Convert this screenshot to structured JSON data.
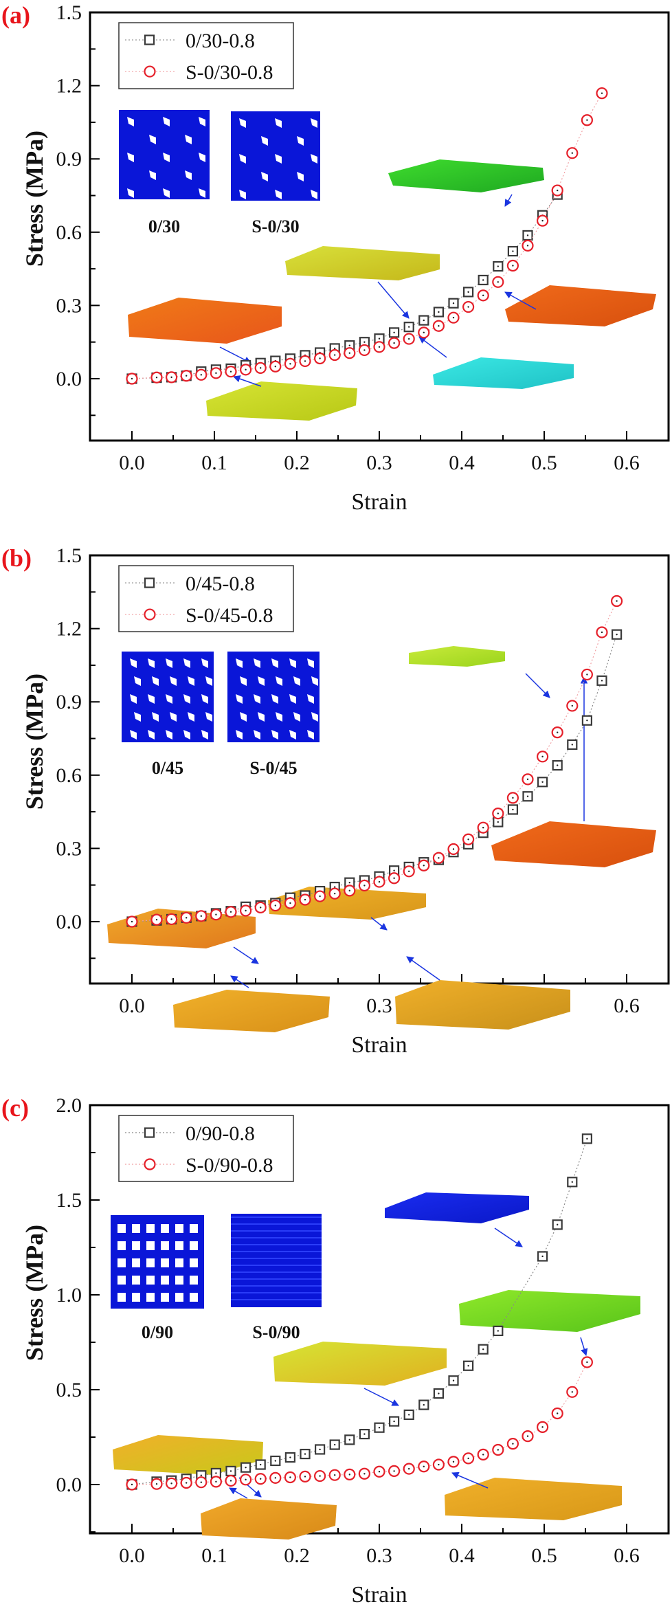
{
  "figure": {
    "panels": [
      {
        "id": "a",
        "label": "(a)",
        "inset_captions": [
          "0/30",
          "S-0/30"
        ]
      },
      {
        "id": "b",
        "label": "(b)",
        "inset_captions": [
          "0/45",
          "S-0/45"
        ]
      },
      {
        "id": "c",
        "label": "(c)",
        "inset_captions": [
          "0/90",
          "S-0/90"
        ]
      }
    ],
    "colors": {
      "series_square": "#3a3a3a",
      "series_circle": "#e5202a",
      "panel_label": "#e8141b",
      "arrow": "#1a35e0",
      "inset_blue": "#0a16d8"
    }
  },
  "chart_data": [
    {
      "type": "scatter",
      "panel": "(a)",
      "title": "",
      "xlabel": "Strain",
      "ylabel": "Stress (MPa)",
      "xlim": [
        -0.05,
        0.65
      ],
      "ylim": [
        -0.25,
        1.5
      ],
      "xticks": [
        "0.0",
        "0.1",
        "0.2",
        "0.3",
        "0.4",
        "0.5",
        "0.6"
      ],
      "yticks": [
        "0.0",
        "0.3",
        "0.6",
        "0.9",
        "1.2",
        "1.5"
      ],
      "xtick_values": [
        0.0,
        0.1,
        0.2,
        0.3,
        0.4,
        0.5,
        0.6
      ],
      "ytick_values": [
        0.0,
        0.3,
        0.6,
        0.9,
        1.2,
        1.5
      ],
      "grid": false,
      "legend_position": "top-left",
      "series": [
        {
          "name": "0/30-0.8",
          "marker": "square",
          "x": [
            0,
            0.03,
            0.048,
            0.066,
            0.084,
            0.102,
            0.12,
            0.138,
            0.156,
            0.174,
            0.192,
            0.21,
            0.228,
            0.246,
            0.264,
            0.282,
            0.3,
            0.318,
            0.336,
            0.354,
            0.372,
            0.39,
            0.408,
            0.426,
            0.444,
            0.462,
            0.48,
            0.498,
            0.516
          ],
          "y": [
            0,
            0.004,
            0.006,
            0.012,
            0.029,
            0.037,
            0.041,
            0.055,
            0.064,
            0.073,
            0.082,
            0.096,
            0.107,
            0.124,
            0.136,
            0.15,
            0.164,
            0.189,
            0.212,
            0.239,
            0.273,
            0.309,
            0.355,
            0.404,
            0.46,
            0.522,
            0.587,
            0.669,
            0.754
          ]
        },
        {
          "name": "S-0/30-0.8",
          "marker": "circle",
          "x": [
            0,
            0.03,
            0.048,
            0.066,
            0.084,
            0.102,
            0.12,
            0.138,
            0.156,
            0.174,
            0.192,
            0.21,
            0.228,
            0.246,
            0.264,
            0.282,
            0.3,
            0.318,
            0.336,
            0.354,
            0.372,
            0.39,
            0.408,
            0.426,
            0.444,
            0.462,
            0.48,
            0.498,
            0.516,
            0.534,
            0.552,
            0.57
          ],
          "y": [
            0,
            0.005,
            0.006,
            0.012,
            0.016,
            0.023,
            0.029,
            0.037,
            0.044,
            0.05,
            0.061,
            0.072,
            0.083,
            0.097,
            0.105,
            0.117,
            0.13,
            0.146,
            0.163,
            0.189,
            0.216,
            0.25,
            0.294,
            0.341,
            0.396,
            0.463,
            0.545,
            0.647,
            0.771,
            0.924,
            1.059,
            1.169
          ]
        }
      ]
    },
    {
      "type": "scatter",
      "panel": "(b)",
      "title": "",
      "xlabel": "Strain",
      "ylabel": "Stress (MPa)",
      "xlim": [
        -0.05,
        0.65
      ],
      "ylim": [
        -0.25,
        1.5
      ],
      "xticks": [
        "0.0",
        "0.1",
        "0.2",
        "0.3",
        "0.4",
        "0.5",
        "0.6"
      ],
      "yticks": [
        "0.0",
        "0.3",
        "0.6",
        "0.9",
        "1.2",
        "1.5"
      ],
      "xtick_values": [
        0.0,
        0.1,
        0.2,
        0.3,
        0.4,
        0.5,
        0.6
      ],
      "ytick_values": [
        0.0,
        0.3,
        0.6,
        0.9,
        1.2,
        1.5
      ],
      "grid": false,
      "legend_position": "top-left",
      "series": [
        {
          "name": "0/45-0.8",
          "marker": "square",
          "x": [
            0,
            0.03,
            0.048,
            0.066,
            0.084,
            0.102,
            0.12,
            0.138,
            0.156,
            0.174,
            0.192,
            0.21,
            0.228,
            0.246,
            0.264,
            0.282,
            0.3,
            0.318,
            0.336,
            0.354,
            0.372,
            0.39,
            0.408,
            0.426,
            0.444,
            0.462,
            0.48,
            0.498,
            0.516,
            0.534,
            0.552,
            0.57,
            0.588
          ],
          "y": [
            0,
            0.005,
            0.01,
            0.016,
            0.023,
            0.034,
            0.043,
            0.061,
            0.066,
            0.076,
            0.098,
            0.107,
            0.125,
            0.142,
            0.16,
            0.169,
            0.185,
            0.209,
            0.224,
            0.243,
            0.253,
            0.285,
            0.317,
            0.364,
            0.408,
            0.459,
            0.513,
            0.572,
            0.64,
            0.725,
            0.824,
            0.987,
            1.176
          ]
        },
        {
          "name": "S-0/45-0.8",
          "marker": "circle",
          "x": [
            0,
            0.03,
            0.048,
            0.066,
            0.084,
            0.102,
            0.12,
            0.138,
            0.156,
            0.174,
            0.192,
            0.21,
            0.228,
            0.246,
            0.264,
            0.282,
            0.3,
            0.318,
            0.336,
            0.354,
            0.372,
            0.39,
            0.408,
            0.426,
            0.444,
            0.462,
            0.48,
            0.498,
            0.516,
            0.534,
            0.552,
            0.57,
            0.588
          ],
          "y": [
            0,
            0.008,
            0.01,
            0.016,
            0.023,
            0.029,
            0.04,
            0.045,
            0.058,
            0.066,
            0.076,
            0.09,
            0.104,
            0.115,
            0.127,
            0.148,
            0.163,
            0.178,
            0.206,
            0.23,
            0.261,
            0.297,
            0.337,
            0.385,
            0.443,
            0.507,
            0.583,
            0.676,
            0.775,
            0.884,
            1.012,
            1.185,
            1.313
          ]
        }
      ]
    },
    {
      "type": "scatter",
      "panel": "(c)",
      "title": "",
      "xlabel": "Strain",
      "ylabel": "Stress (MPa)",
      "xlim": [
        -0.05,
        0.65
      ],
      "ylim": [
        -0.25,
        2.0
      ],
      "xticks": [
        "0.0",
        "0.1",
        "0.2",
        "0.3",
        "0.4",
        "0.5",
        "0.6"
      ],
      "yticks": [
        "0.0",
        "0.5",
        "1.0",
        "1.5",
        "2.0"
      ],
      "xtick_values": [
        0.0,
        0.1,
        0.2,
        0.3,
        0.4,
        0.5,
        0.6
      ],
      "ytick_values": [
        0.0,
        0.5,
        1.0,
        1.5,
        2.0
      ],
      "grid": false,
      "legend_position": "top-left",
      "series": [
        {
          "name": "0/90-0.8",
          "marker": "square",
          "x": [
            0,
            0.03,
            0.048,
            0.066,
            0.084,
            0.102,
            0.12,
            0.138,
            0.156,
            0.174,
            0.192,
            0.21,
            0.228,
            0.246,
            0.264,
            0.282,
            0.3,
            0.318,
            0.336,
            0.354,
            0.372,
            0.39,
            0.408,
            0.426,
            0.444,
            0.498,
            0.516,
            0.534,
            0.552
          ],
          "y": [
            0,
            0.015,
            0.021,
            0.03,
            0.048,
            0.06,
            0.071,
            0.09,
            0.105,
            0.125,
            0.143,
            0.161,
            0.185,
            0.21,
            0.236,
            0.266,
            0.3,
            0.333,
            0.368,
            0.42,
            0.48,
            0.548,
            0.626,
            0.713,
            0.81,
            1.203,
            1.37,
            1.595,
            1.823
          ]
        },
        {
          "name": "S-0/90-0.8",
          "marker": "circle",
          "x": [
            0,
            0.03,
            0.048,
            0.066,
            0.084,
            0.102,
            0.12,
            0.138,
            0.156,
            0.174,
            0.192,
            0.21,
            0.228,
            0.246,
            0.264,
            0.282,
            0.3,
            0.318,
            0.336,
            0.354,
            0.372,
            0.39,
            0.408,
            0.426,
            0.444,
            0.462,
            0.48,
            0.498,
            0.516,
            0.534,
            0.552
          ],
          "y": [
            0,
            0.003,
            0.006,
            0.009,
            0.012,
            0.015,
            0.02,
            0.026,
            0.03,
            0.035,
            0.038,
            0.042,
            0.045,
            0.05,
            0.053,
            0.057,
            0.068,
            0.071,
            0.083,
            0.095,
            0.105,
            0.12,
            0.138,
            0.158,
            0.183,
            0.215,
            0.255,
            0.303,
            0.375,
            0.488,
            0.645
          ]
        }
      ]
    }
  ]
}
